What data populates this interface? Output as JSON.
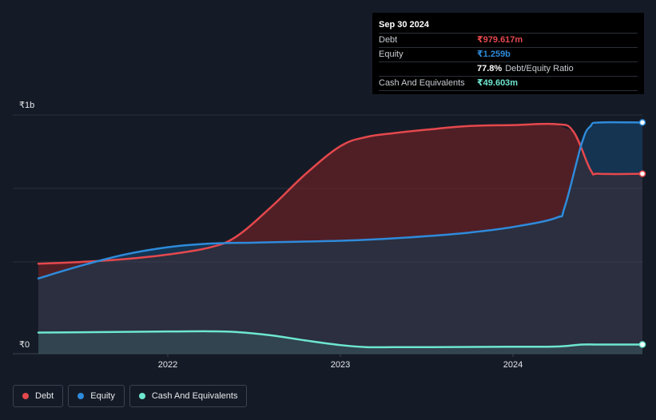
{
  "chart_data": {
    "type": "area",
    "x_ticks": [
      "2022",
      "2023",
      "2024"
    ],
    "x_tick_values": [
      2022.0,
      2023.0,
      2024.0
    ],
    "xlim": [
      2021.25,
      2024.75
    ],
    "ylim": [
      0,
      1.3
    ],
    "y_unit": "₹b",
    "y_tick_labels": [
      {
        "label": "₹1b",
        "value": 1.3
      },
      {
        "label": "₹0",
        "value": 0
      }
    ],
    "series": [
      {
        "name": "Debt",
        "color": "#e5484d",
        "x": [
          2021.25,
          2021.5,
          2021.75,
          2022.0,
          2022.25,
          2022.4,
          2022.6,
          2022.8,
          2023.0,
          2023.15,
          2023.3,
          2023.5,
          2023.75,
          2024.0,
          2024.25,
          2024.35,
          2024.45,
          2024.5,
          2024.75
        ],
        "y": [
          0.49,
          0.5,
          0.515,
          0.54,
          0.58,
          0.64,
          0.8,
          0.98,
          1.13,
          1.18,
          1.2,
          1.22,
          1.24,
          1.245,
          1.25,
          1.21,
          1.0,
          0.98,
          0.98
        ]
      },
      {
        "name": "Equity",
        "color": "#2e8bdb",
        "x": [
          2021.25,
          2021.5,
          2021.75,
          2022.0,
          2022.25,
          2022.5,
          2022.75,
          2023.0,
          2023.25,
          2023.5,
          2023.75,
          2024.0,
          2024.25,
          2024.3,
          2024.4,
          2024.45,
          2024.5,
          2024.75
        ],
        "y": [
          0.41,
          0.48,
          0.54,
          0.58,
          0.6,
          0.605,
          0.61,
          0.615,
          0.625,
          0.64,
          0.66,
          0.69,
          0.74,
          0.8,
          1.15,
          1.24,
          1.259,
          1.259
        ]
      },
      {
        "name": "Cash And Equivalents",
        "color": "#6ee7d0",
        "x": [
          2021.25,
          2021.5,
          2021.75,
          2022.0,
          2022.25,
          2022.4,
          2022.6,
          2022.8,
          2023.0,
          2023.15,
          2023.3,
          2023.5,
          2023.75,
          2024.0,
          2024.25,
          2024.4,
          2024.5,
          2024.75
        ],
        "y": [
          0.115,
          0.117,
          0.119,
          0.121,
          0.122,
          0.118,
          0.1,
          0.072,
          0.047,
          0.036,
          0.036,
          0.036,
          0.037,
          0.038,
          0.039,
          0.05,
          0.05,
          0.05
        ]
      }
    ],
    "tooltip": {
      "date": "Sep 30 2024",
      "rows": [
        {
          "label": "Debt",
          "value": "₹979.617m",
          "color": "#e5484d"
        },
        {
          "label": "Equity",
          "value": "₹1.259b",
          "color": "#2e8bdb"
        },
        {
          "label": "",
          "value": "77.8%",
          "extra": "Debt/Equity Ratio",
          "color": "#ffffff"
        },
        {
          "label": "Cash And Equivalents",
          "value": "₹49.603m",
          "color": "#6ee7d0"
        }
      ]
    },
    "legend": [
      {
        "label": "Debt",
        "color": "#e5484d"
      },
      {
        "label": "Equity",
        "color": "#2e8bdb"
      },
      {
        "label": "Cash And Equivalents",
        "color": "#6ee7d0"
      }
    ],
    "grid": true,
    "legend_position": "bottom-left"
  }
}
